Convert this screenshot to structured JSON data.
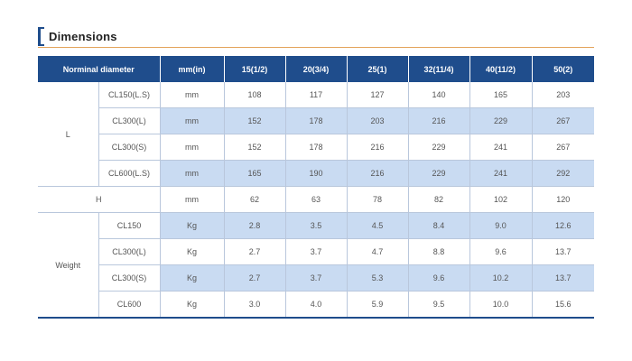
{
  "section": {
    "title": "Dimensions"
  },
  "table": {
    "headers": [
      "Norminal diameter",
      "mm(in)",
      "15(1/2)",
      "20(3/4)",
      "25(1)",
      "32(11/4)",
      "40(11/2)",
      "50(2)"
    ],
    "groups": {
      "L": "L",
      "H": "H",
      "Weight": "Weight"
    },
    "L_rows": [
      {
        "sub": "CL150(L.S)",
        "unit": "mm",
        "values": [
          "108",
          "117",
          "127",
          "140",
          "165",
          "203"
        ]
      },
      {
        "sub": "CL300(L)",
        "unit": "mm",
        "values": [
          "152",
          "178",
          "203",
          "216",
          "229",
          "267"
        ]
      },
      {
        "sub": "CL300(S)",
        "unit": "mm",
        "values": [
          "152",
          "178",
          "216",
          "229",
          "241",
          "267"
        ]
      },
      {
        "sub": "CL600(L.S)",
        "unit": "mm",
        "values": [
          "165",
          "190",
          "216",
          "229",
          "241",
          "292"
        ]
      }
    ],
    "H_row": {
      "unit": "mm",
      "values": [
        "62",
        "63",
        "78",
        "82",
        "102",
        "120"
      ]
    },
    "W_rows": [
      {
        "sub": "CL150",
        "unit": "Kg",
        "values": [
          "2.8",
          "3.5",
          "4.5",
          "8.4",
          "9.0",
          "12.6"
        ]
      },
      {
        "sub": "CL300(L)",
        "unit": "Kg",
        "values": [
          "2.7",
          "3.7",
          "4.7",
          "8.8",
          "9.6",
          "13.7"
        ]
      },
      {
        "sub": "CL300(S)",
        "unit": "Kg",
        "values": [
          "2.7",
          "3.7",
          "5.3",
          "9.6",
          "10.2",
          "13.7"
        ]
      },
      {
        "sub": "CL600",
        "unit": "Kg",
        "values": [
          "3.0",
          "4.0",
          "5.9",
          "9.5",
          "10.0",
          "15.6"
        ]
      }
    ]
  },
  "colors": {
    "header_bg": "#1f4d8c",
    "shaded_row": "#c9dbf2",
    "accent_line": "#e3a35a"
  }
}
